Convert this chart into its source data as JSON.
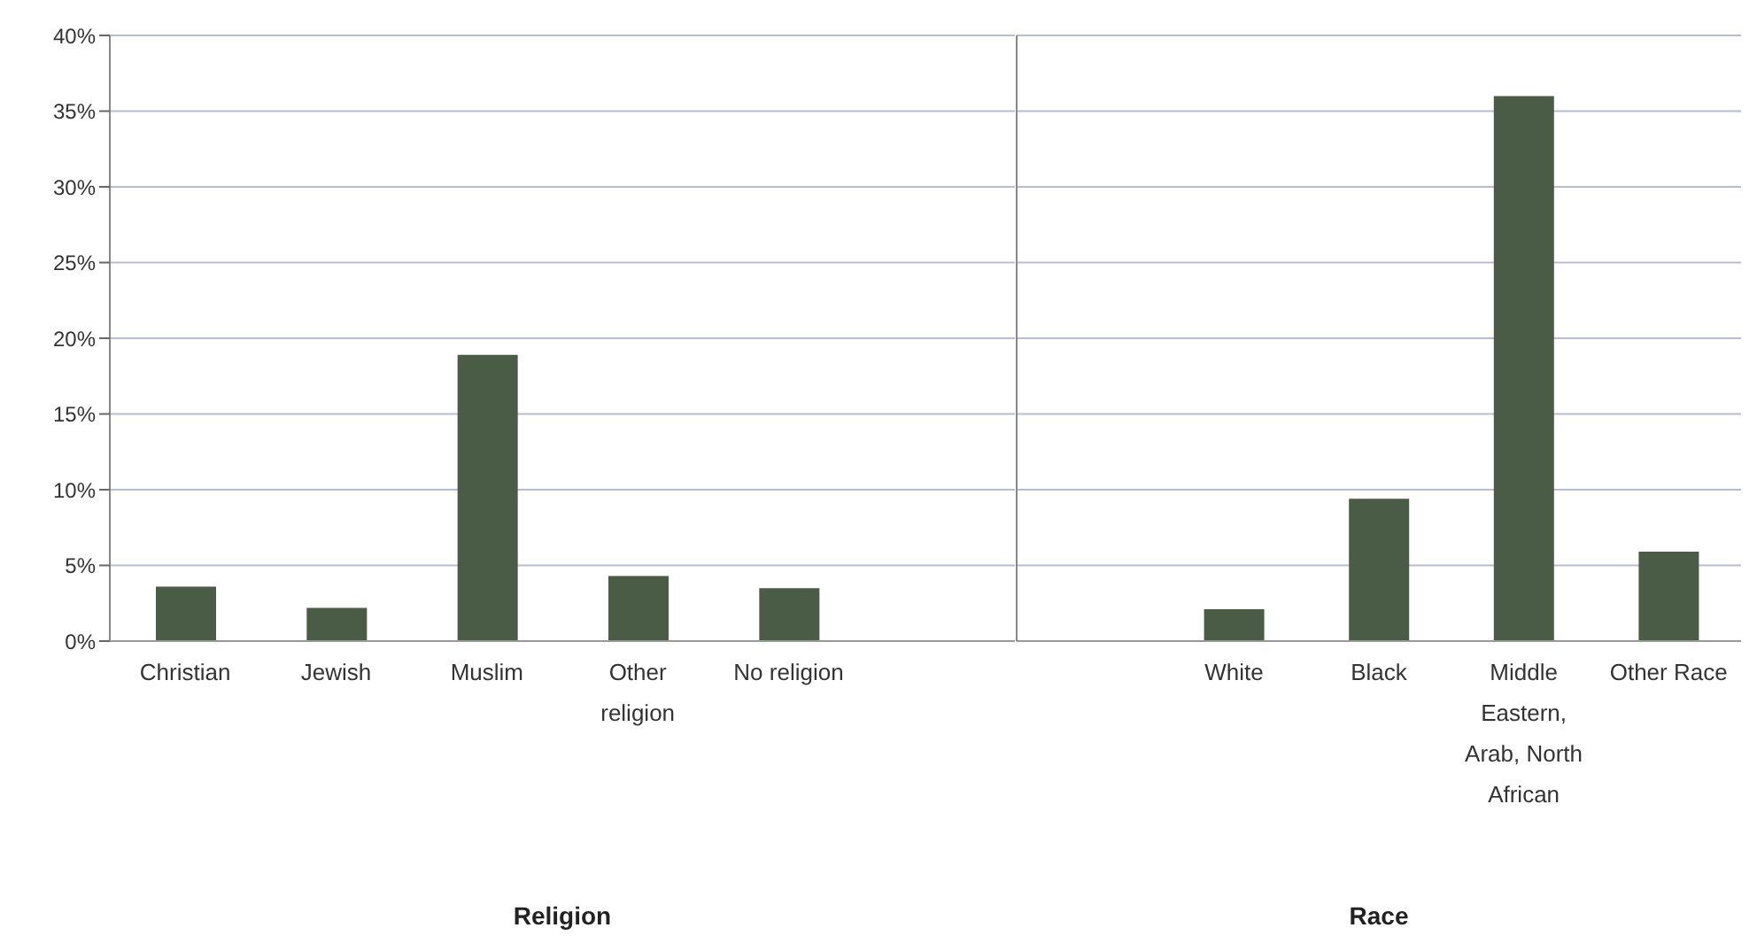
{
  "chart_data": [
    {
      "type": "bar",
      "xlabel": "Religion",
      "categories": [
        "Christian",
        "Jewish",
        "Muslim",
        "Other religion",
        "No religion",
        null
      ],
      "values": [
        3.6,
        2.2,
        18.9,
        4.3,
        3.5,
        null
      ],
      "color": "#4a5b46",
      "ylim": [
        0,
        40
      ],
      "yticks": [
        {
          "value": 0,
          "label": "0%"
        },
        {
          "value": 5,
          "label": "5%"
        },
        {
          "value": 10,
          "label": "10%"
        },
        {
          "value": 15,
          "label": "15%"
        },
        {
          "value": 20,
          "label": "20%"
        },
        {
          "value": 25,
          "label": "25%"
        },
        {
          "value": 30,
          "label": "30%"
        },
        {
          "value": 35,
          "label": "35%"
        },
        {
          "value": 40,
          "label": "40%"
        }
      ],
      "grid": "y"
    },
    {
      "type": "bar",
      "xlabel": "Race",
      "categories": [
        null,
        "White",
        "Black",
        "Middle Eastern, Arab, North African",
        "Other Race"
      ],
      "values": [
        null,
        2.1,
        9.4,
        36.0,
        5.9
      ],
      "color": "#4a5b46",
      "ylim": [
        0,
        40
      ],
      "yticks": [
        0,
        5,
        10,
        15,
        20,
        25,
        30,
        35,
        40
      ],
      "grid": "y",
      "tick_labels": "x"
    }
  ]
}
